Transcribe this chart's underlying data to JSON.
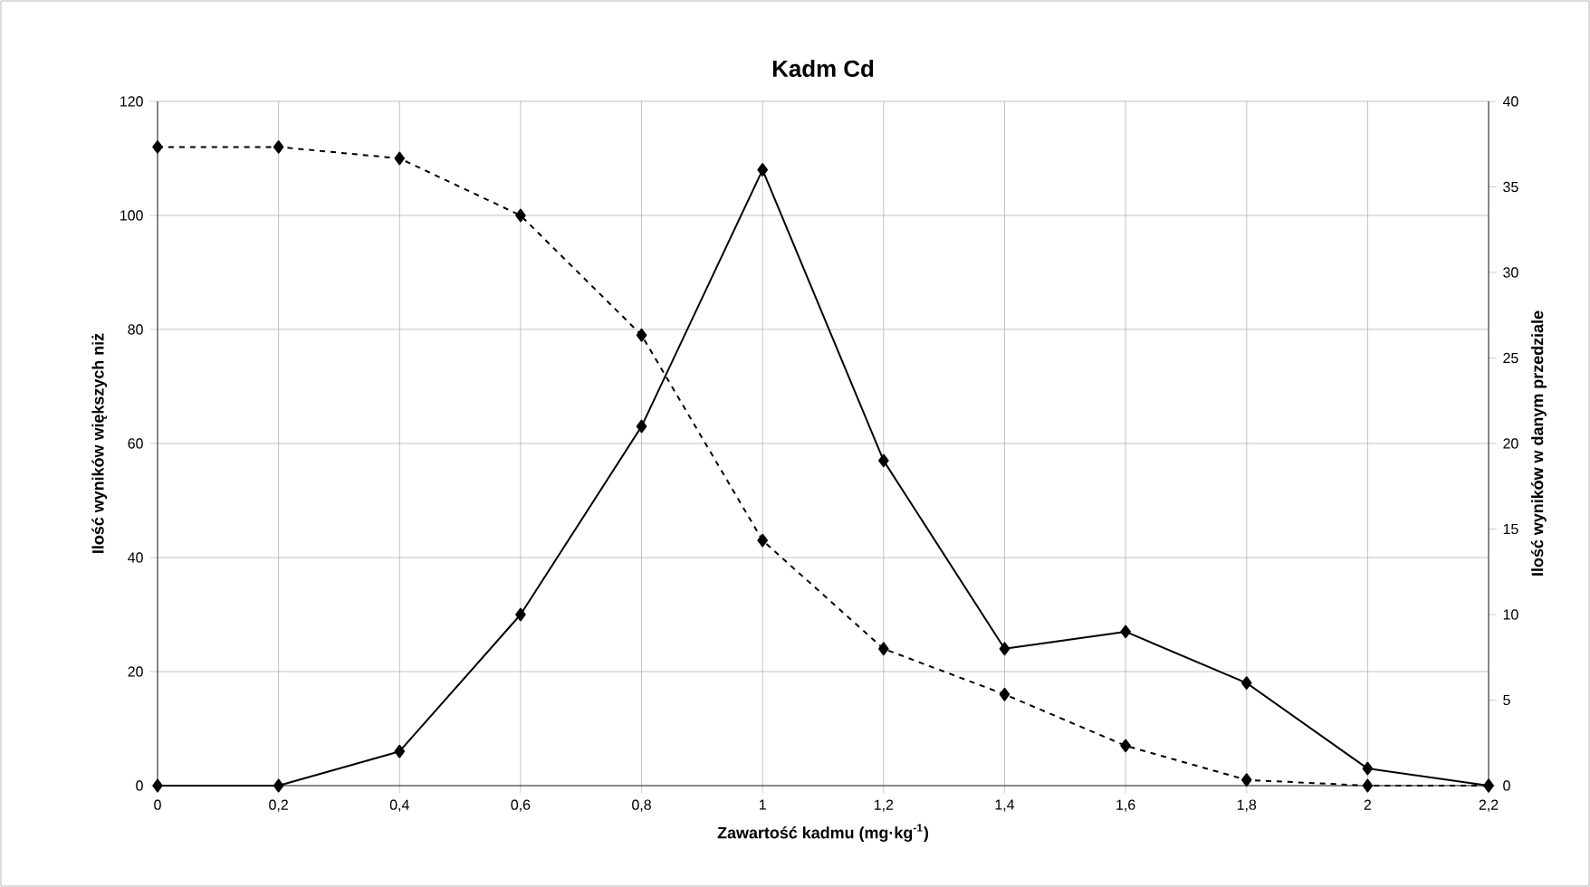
{
  "chart_data": {
    "type": "line",
    "title": "Kadm Cd",
    "xlabel": "Zawartość kadmu (mg·kg$^{-1}$)",
    "ylabel": "Ilość wyników większych niż",
    "y2label": "Ilość wyników w danym przedziale",
    "x": [
      0,
      0.2,
      0.4,
      0.6,
      0.8,
      1,
      1.2,
      1.4,
      1.6,
      1.8,
      2,
      2.2
    ],
    "series": [
      {
        "color": "#000000",
        "line_style": "dashed",
        "values": [
          112,
          112,
          110,
          100,
          79,
          43,
          24,
          16,
          7,
          1,
          0,
          0
        ]
      },
      {
        "color": "#000000",
        "line_style": "solid",
        "axis": "y2",
        "values": [
          0,
          0,
          2,
          10,
          21,
          36,
          19,
          8,
          9,
          6,
          1,
          0
        ]
      }
    ],
    "xlim": [
      0,
      2.2
    ],
    "xticks": [
      0,
      {
        "value": 0.2,
        "label": "0,2"
      },
      {
        "value": 0.4,
        "label": "0,4"
      },
      {
        "value": 0.6,
        "label": "0,6"
      },
      {
        "value": 0.8,
        "label": "0,8"
      },
      1,
      {
        "value": 1.2,
        "label": "1,2"
      },
      {
        "value": 1.4,
        "label": "1,4"
      },
      {
        "value": 1.6,
        "label": "1,6"
      },
      {
        "value": 1.8,
        "label": "1,8"
      },
      2,
      {
        "value": 2.2,
        "label": "2,2"
      }
    ],
    "ylim": [
      0,
      120
    ],
    "yticks": [
      0,
      20,
      40,
      60,
      80,
      100,
      120
    ],
    "y2lim": [
      0,
      40
    ],
    "y2ticks": [
      0,
      5,
      10,
      15,
      20,
      25,
      30,
      35,
      40
    ],
    "grid": true,
    "marker": "diamond"
  }
}
